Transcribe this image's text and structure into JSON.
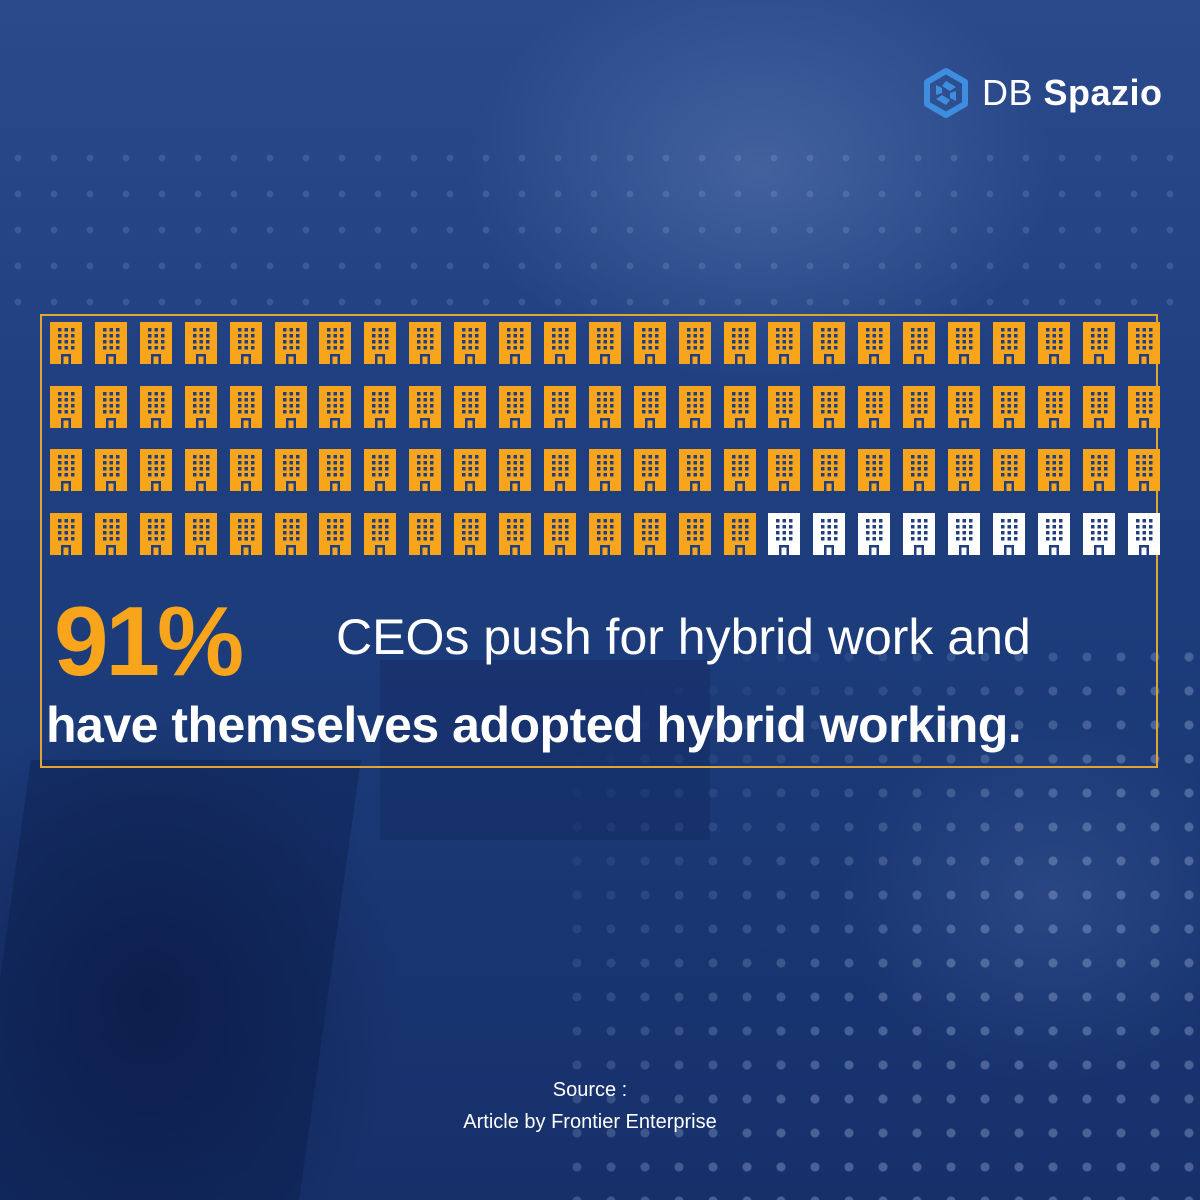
{
  "brand": {
    "name_light": "DB",
    "name_bold": "Spazio",
    "logo_icon": "hexagon-swirl-icon",
    "logo_color": "#3d8ee0"
  },
  "infographic": {
    "icon": "office-building-icon",
    "total_icons": 100,
    "highlighted_icons": 91,
    "highlight_color": "#f8a51b",
    "rest_color": "#ffffff",
    "percentage": "91%",
    "headline_part1": "CEOs push for hybrid work and",
    "headline_part2": "have themselves adopted hybrid working."
  },
  "source": {
    "label": "Source :",
    "text": "Article by Frontier Enterprise"
  },
  "colors": {
    "background": "#1f3f80",
    "frame_border": "#e2a533"
  }
}
